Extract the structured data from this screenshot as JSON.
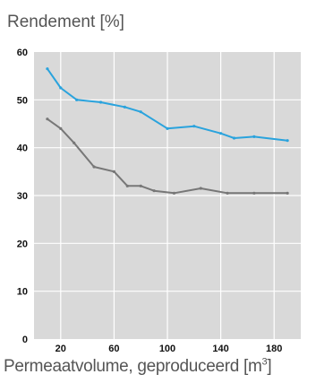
{
  "chart_data": {
    "type": "line",
    "title": "Rendement [%]",
    "xlabel_main": "Permeaatvolume, geproduceerd [m",
    "xlabel_sup": "3",
    "xlabel_close": "]",
    "xlim": [
      0,
      200
    ],
    "ylim": [
      0,
      60
    ],
    "xticks": [
      20,
      60,
      100,
      140,
      180
    ],
    "yticks": [
      0,
      10,
      20,
      30,
      40,
      50,
      60
    ],
    "grid": true,
    "series": [
      {
        "color": "#2aa3dd",
        "x": [
          10,
          20,
          32,
          50,
          68,
          80,
          100,
          120,
          140,
          150,
          165,
          190
        ],
        "y": [
          56.5,
          52.5,
          50,
          49.5,
          48.5,
          47.5,
          44,
          44.5,
          43,
          42,
          42.3,
          41.5
        ]
      },
      {
        "color": "#777777",
        "x": [
          10,
          20,
          30,
          45,
          60,
          70,
          80,
          90,
          105,
          125,
          145,
          165,
          190
        ],
        "y": [
          46,
          44,
          41,
          36,
          35,
          32,
          32,
          31,
          30.5,
          31.5,
          30.5,
          30.5,
          30.5
        ]
      }
    ]
  }
}
